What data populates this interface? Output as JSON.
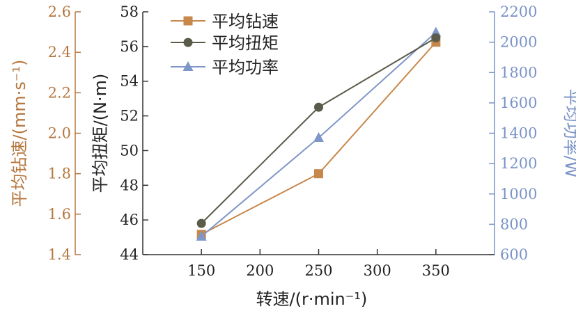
{
  "chart_data": {
    "type": "line",
    "x": [
      150,
      250,
      350
    ],
    "xlabel": "转速/(r·min⁻¹)",
    "xlim": [
      100,
      400
    ],
    "xticks": [
      "150",
      "200",
      "250",
      "300",
      "350"
    ],
    "axes": {
      "speed": {
        "label": "平均钻速/(mm·s⁻¹)",
        "ylim": [
          1.4,
          2.6
        ],
        "ticks": [
          "1.4",
          "1.6",
          "1.8",
          "2.0",
          "2.2",
          "2.4",
          "2.6"
        ],
        "color": "#b5773e"
      },
      "torque": {
        "label": "平均扭矩/(N·m)",
        "ylim": [
          44,
          58
        ],
        "ticks": [
          "44",
          "46",
          "48",
          "50",
          "52",
          "54",
          "56",
          "58"
        ],
        "color": "#222222"
      },
      "power": {
        "label": "平均功率/W",
        "ylim": [
          600,
          2200
        ],
        "ticks": [
          "600",
          "800",
          "1000",
          "1200",
          "1400",
          "1600",
          "1800",
          "2000",
          "2200"
        ],
        "color": "#7a93c6"
      }
    },
    "series": [
      {
        "name": "平均钻速",
        "axis": "speed",
        "values": [
          1.5,
          1.8,
          2.45
        ],
        "color": "#c8874a",
        "marker": "square"
      },
      {
        "name": "平均扭矩",
        "axis": "torque",
        "values": [
          45.8,
          52.5,
          56.5
        ],
        "color": "#5b5b4a",
        "marker": "circle"
      },
      {
        "name": "平均功率",
        "axis": "power",
        "values": [
          720,
          1370,
          2065
        ],
        "color": "#7e96c8",
        "marker": "triangle"
      }
    ],
    "legend_position": "top-left",
    "grid": false
  }
}
